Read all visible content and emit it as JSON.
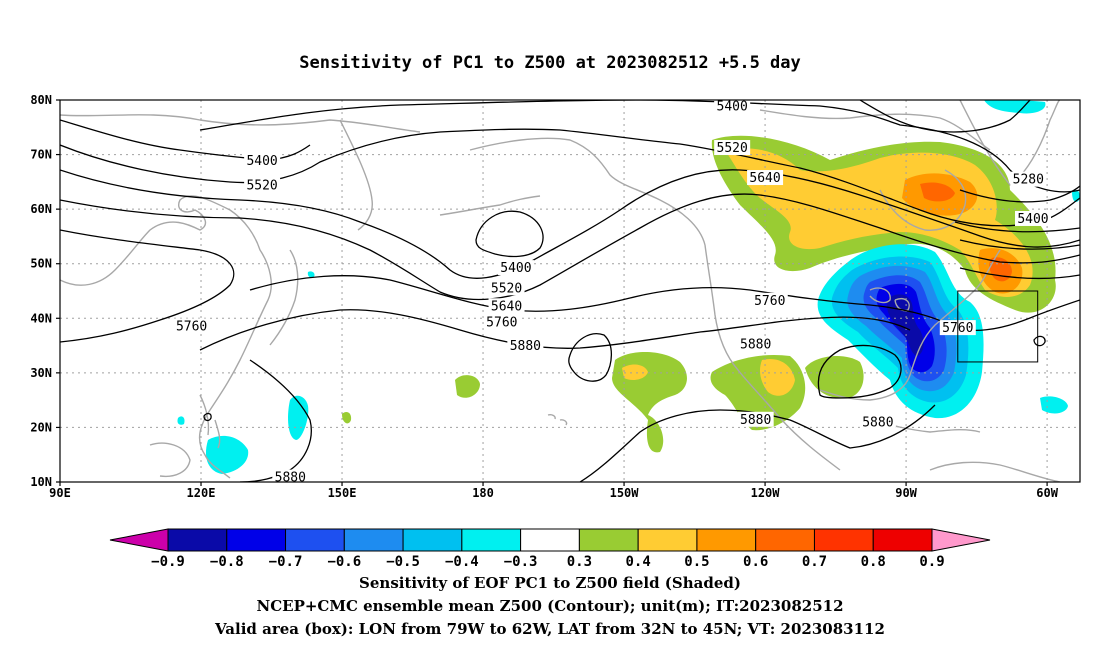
{
  "title": "Sensitivity of PC1 to Z500 at 2023082512 +5.5 day",
  "map": {
    "lon_range_deg_east": [
      90,
      307
    ],
    "lat_range": [
      10,
      80
    ],
    "lon_ticks": [
      {
        "lon": 90,
        "label": "90E"
      },
      {
        "lon": 120,
        "label": "120E"
      },
      {
        "lon": 150,
        "label": "150E"
      },
      {
        "lon": 180,
        "label": "180"
      },
      {
        "lon": 210,
        "label": "150W"
      },
      {
        "lon": 240,
        "label": "120W"
      },
      {
        "lon": 270,
        "label": "90W"
      },
      {
        "lon": 300,
        "label": "60W"
      }
    ],
    "lat_ticks": [
      {
        "lat": 80,
        "label": "80N"
      },
      {
        "lat": 70,
        "label": "70N"
      },
      {
        "lat": 60,
        "label": "60N"
      },
      {
        "lat": 50,
        "label": "50N"
      },
      {
        "lat": 40,
        "label": "40N"
      },
      {
        "lat": 30,
        "label": "30N"
      },
      {
        "lat": 20,
        "label": "20N"
      },
      {
        "lat": 10,
        "label": "10N"
      }
    ],
    "contour_labels": [
      {
        "text": "5400",
        "lon": 233,
        "lat": 78.8
      },
      {
        "text": "5520",
        "lon": 233,
        "lat": 71.2
      },
      {
        "text": "5640",
        "lon": 240,
        "lat": 65.7
      },
      {
        "text": "5400",
        "lon": 133,
        "lat": 68.8
      },
      {
        "text": "5520",
        "lon": 133,
        "lat": 64.3
      },
      {
        "text": "5400",
        "lon": 187,
        "lat": 49.2
      },
      {
        "text": "5520",
        "lon": 185,
        "lat": 45.5
      },
      {
        "text": "5640",
        "lon": 185,
        "lat": 42.2
      },
      {
        "text": "5760",
        "lon": 184,
        "lat": 39.2
      },
      {
        "text": "5880",
        "lon": 189,
        "lat": 34.9
      },
      {
        "text": "5760",
        "lon": 118,
        "lat": 38.5
      },
      {
        "text": "5760",
        "lon": 241,
        "lat": 43.2
      },
      {
        "text": "5880",
        "lon": 238,
        "lat": 35.2
      },
      {
        "text": "5880",
        "lon": 238,
        "lat": 21.4
      },
      {
        "text": "5880",
        "lon": 264,
        "lat": 20.9
      },
      {
        "text": "5880",
        "lon": 139,
        "lat": 10.8
      },
      {
        "text": "5760",
        "lon": 281,
        "lat": 38.2
      },
      {
        "text": "5280",
        "lon": 296,
        "lat": 65.4
      },
      {
        "text": "5400",
        "lon": 297,
        "lat": 58.2
      }
    ],
    "valid_box": {
      "lon_w": 79,
      "lon_e": 62,
      "lat_s": 32,
      "lat_n": 45
    }
  },
  "colorbar": {
    "colors": [
      "#cc00aa",
      "#0a0aa8",
      "#0000e8",
      "#1e50f0",
      "#1e8cf0",
      "#00c0f0",
      "#00f0f0",
      "#ffffff",
      "#99cc33",
      "#ffcc33",
      "#ff9900",
      "#ff6600",
      "#ff3300",
      "#ee0000",
      "#ff99cc"
    ],
    "labels": [
      "−0.9",
      "−0.8",
      "−0.7",
      "−0.6",
      "−0.5",
      "−0.4",
      "−0.3",
      "0.3",
      "0.4",
      "0.5",
      "0.6",
      "0.7",
      "0.8",
      "0.9"
    ]
  },
  "caption": {
    "line1": "Sensitivity of EOF PC1 to Z500 field (Shaded)",
    "line2": "NCEP+CMC ensemble mean Z500 (Contour); unit(m); IT:2023082512",
    "line3": "Valid area (box): LON from 79W to 62W, LAT from 32N to 45N; VT: 2023083112"
  }
}
